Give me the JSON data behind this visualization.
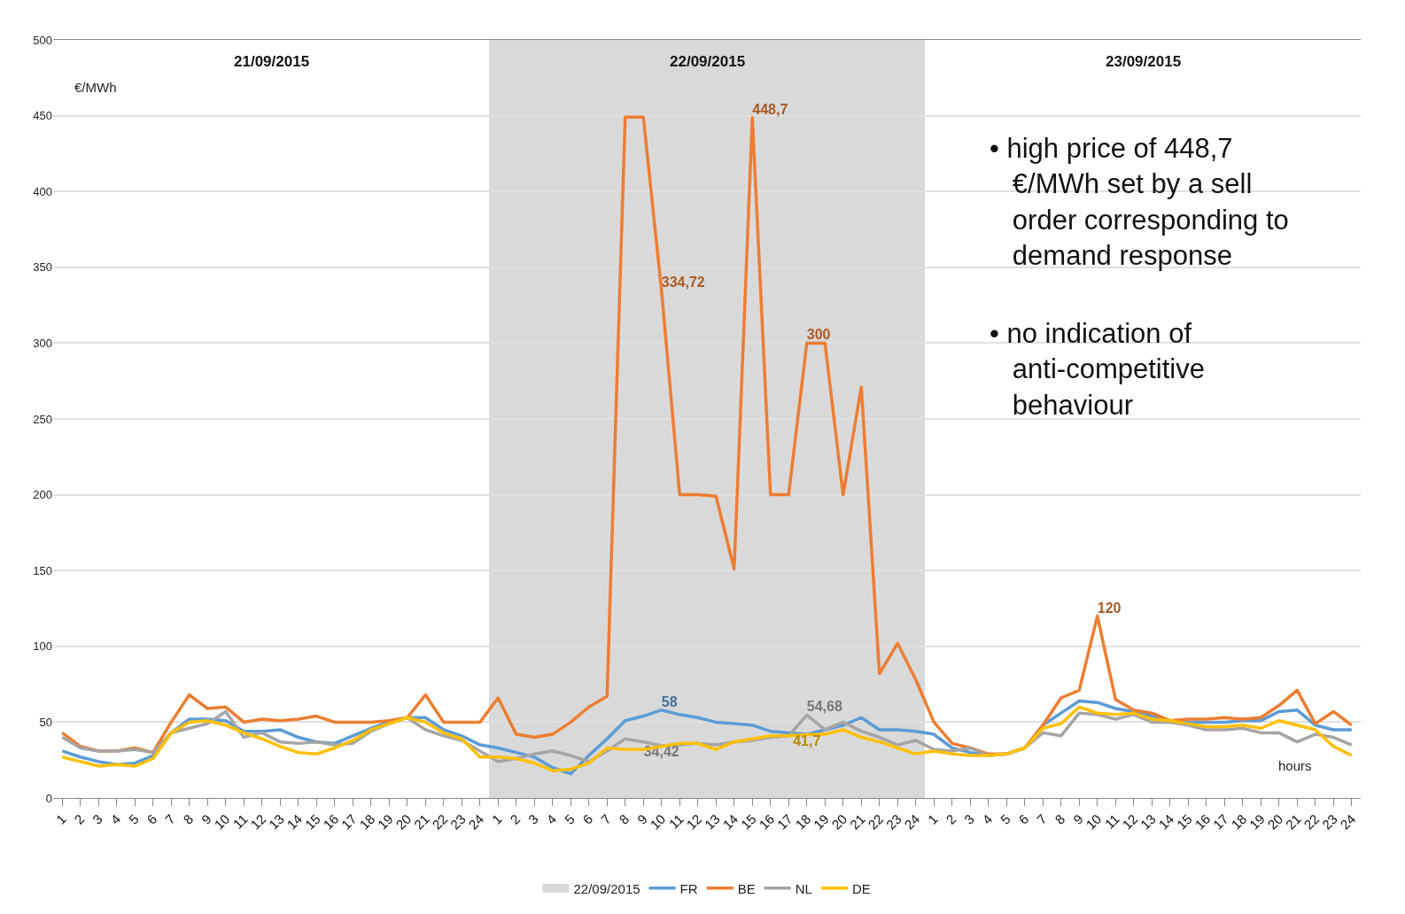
{
  "chart_data": {
    "type": "line",
    "ylabel": "€/MWh",
    "xlabel": "hours",
    "x": [
      "2015-09-21T01:00",
      "2015-09-21T02:00",
      "2015-09-21T03:00",
      "2015-09-21T04:00",
      "2015-09-21T05:00",
      "2015-09-21T06:00",
      "2015-09-21T07:00",
      "2015-09-21T08:00",
      "2015-09-21T09:00",
      "2015-09-21T10:00",
      "2015-09-21T11:00",
      "2015-09-21T12:00",
      "2015-09-21T13:00",
      "2015-09-21T14:00",
      "2015-09-21T15:00",
      "2015-09-21T16:00",
      "2015-09-21T17:00",
      "2015-09-21T18:00",
      "2015-09-21T19:00",
      "2015-09-21T20:00",
      "2015-09-21T21:00",
      "2015-09-21T22:00",
      "2015-09-21T23:00",
      "2015-09-22T00:00",
      "2015-09-22T01:00",
      "2015-09-22T02:00",
      "2015-09-22T03:00",
      "2015-09-22T04:00",
      "2015-09-22T05:00",
      "2015-09-22T06:00",
      "2015-09-22T07:00",
      "2015-09-22T08:00",
      "2015-09-22T09:00",
      "2015-09-22T10:00",
      "2015-09-22T11:00",
      "2015-09-22T12:00",
      "2015-09-22T13:00",
      "2015-09-22T14:00",
      "2015-09-22T15:00",
      "2015-09-22T16:00",
      "2015-09-22T17:00",
      "2015-09-22T18:00",
      "2015-09-22T19:00",
      "2015-09-22T20:00",
      "2015-09-22T21:00",
      "2015-09-22T22:00",
      "2015-09-22T23:00",
      "2015-09-23T00:00",
      "2015-09-23T01:00",
      "2015-09-23T02:00",
      "2015-09-23T03:00",
      "2015-09-23T04:00",
      "2015-09-23T05:00",
      "2015-09-23T06:00",
      "2015-09-23T07:00",
      "2015-09-23T08:00",
      "2015-09-23T09:00",
      "2015-09-23T10:00",
      "2015-09-23T11:00",
      "2015-09-23T12:00",
      "2015-09-23T13:00",
      "2015-09-23T14:00",
      "2015-09-23T15:00",
      "2015-09-23T16:00",
      "2015-09-23T17:00",
      "2015-09-23T18:00",
      "2015-09-23T19:00",
      "2015-09-23T20:00",
      "2015-09-23T21:00",
      "2015-09-23T22:00",
      "2015-09-23T23:00",
      "2015-09-24T00:00"
    ],
    "xlim": [
      "2015-09-21T00:30",
      "2015-09-24T00:30"
    ],
    "xticks": [
      {
        "value": "2015-09-21T01:00",
        "label": "1"
      },
      {
        "value": "2015-09-21T02:00",
        "label": "2"
      },
      {
        "value": "2015-09-21T03:00",
        "label": "3"
      },
      {
        "value": "2015-09-21T04:00",
        "label": "4"
      },
      {
        "value": "2015-09-21T05:00",
        "label": "5"
      },
      {
        "value": "2015-09-21T06:00",
        "label": "6"
      },
      {
        "value": "2015-09-21T07:00",
        "label": "7"
      },
      {
        "value": "2015-09-21T08:00",
        "label": "8"
      },
      {
        "value": "2015-09-21T09:00",
        "label": "9"
      },
      {
        "value": "2015-09-21T10:00",
        "label": "10"
      },
      {
        "value": "2015-09-21T11:00",
        "label": "11"
      },
      {
        "value": "2015-09-21T12:00",
        "label": "12"
      },
      {
        "value": "2015-09-21T13:00",
        "label": "13"
      },
      {
        "value": "2015-09-21T14:00",
        "label": "14"
      },
      {
        "value": "2015-09-21T15:00",
        "label": "15"
      },
      {
        "value": "2015-09-21T16:00",
        "label": "16"
      },
      {
        "value": "2015-09-21T17:00",
        "label": "17"
      },
      {
        "value": "2015-09-21T18:00",
        "label": "18"
      },
      {
        "value": "2015-09-21T19:00",
        "label": "19"
      },
      {
        "value": "2015-09-21T20:00",
        "label": "20"
      },
      {
        "value": "2015-09-21T21:00",
        "label": "21"
      },
      {
        "value": "2015-09-21T22:00",
        "label": "22"
      },
      {
        "value": "2015-09-21T23:00",
        "label": "23"
      },
      {
        "value": "2015-09-22T00:00",
        "label": "24"
      },
      {
        "value": "2015-09-22T01:00",
        "label": "1"
      },
      {
        "value": "2015-09-22T02:00",
        "label": "2"
      },
      {
        "value": "2015-09-22T03:00",
        "label": "3"
      },
      {
        "value": "2015-09-22T04:00",
        "label": "4"
      },
      {
        "value": "2015-09-22T05:00",
        "label": "5"
      },
      {
        "value": "2015-09-22T06:00",
        "label": "6"
      },
      {
        "value": "2015-09-22T07:00",
        "label": "7"
      },
      {
        "value": "2015-09-22T08:00",
        "label": "8"
      },
      {
        "value": "2015-09-22T09:00",
        "label": "9"
      },
      {
        "value": "2015-09-22T10:00",
        "label": "10"
      },
      {
        "value": "2015-09-22T11:00",
        "label": "11"
      },
      {
        "value": "2015-09-22T12:00",
        "label": "12"
      },
      {
        "value": "2015-09-22T13:00",
        "label": "13"
      },
      {
        "value": "2015-09-22T14:00",
        "label": "14"
      },
      {
        "value": "2015-09-22T15:00",
        "label": "15"
      },
      {
        "value": "2015-09-22T16:00",
        "label": "16"
      },
      {
        "value": "2015-09-22T17:00",
        "label": "17"
      },
      {
        "value": "2015-09-22T18:00",
        "label": "18"
      },
      {
        "value": "2015-09-22T19:00",
        "label": "19"
      },
      {
        "value": "2015-09-22T20:00",
        "label": "20"
      },
      {
        "value": "2015-09-22T21:00",
        "label": "21"
      },
      {
        "value": "2015-09-22T22:00",
        "label": "22"
      },
      {
        "value": "2015-09-22T23:00",
        "label": "23"
      },
      {
        "value": "2015-09-23T00:00",
        "label": "24"
      },
      {
        "value": "2015-09-23T01:00",
        "label": "1"
      },
      {
        "value": "2015-09-23T02:00",
        "label": "2"
      },
      {
        "value": "2015-09-23T03:00",
        "label": "3"
      },
      {
        "value": "2015-09-23T04:00",
        "label": "4"
      },
      {
        "value": "2015-09-23T05:00",
        "label": "5"
      },
      {
        "value": "2015-09-23T06:00",
        "label": "6"
      },
      {
        "value": "2015-09-23T07:00",
        "label": "7"
      },
      {
        "value": "2015-09-23T08:00",
        "label": "8"
      },
      {
        "value": "2015-09-23T09:00",
        "label": "9"
      },
      {
        "value": "2015-09-23T10:00",
        "label": "10"
      },
      {
        "value": "2015-09-23T11:00",
        "label": "11"
      },
      {
        "value": "2015-09-23T12:00",
        "label": "12"
      },
      {
        "value": "2015-09-23T13:00",
        "label": "13"
      },
      {
        "value": "2015-09-23T14:00",
        "label": "14"
      },
      {
        "value": "2015-09-23T15:00",
        "label": "15"
      },
      {
        "value": "2015-09-23T16:00",
        "label": "16"
      },
      {
        "value": "2015-09-23T17:00",
        "label": "17"
      },
      {
        "value": "2015-09-23T18:00",
        "label": "18"
      },
      {
        "value": "2015-09-23T19:00",
        "label": "19"
      },
      {
        "value": "2015-09-23T20:00",
        "label": "20"
      },
      {
        "value": "2015-09-23T21:00",
        "label": "21"
      },
      {
        "value": "2015-09-23T22:00",
        "label": "22"
      },
      {
        "value": "2015-09-23T23:00",
        "label": "23"
      },
      {
        "value": "2015-09-24T00:00",
        "label": "24"
      }
    ],
    "x2lim": [
      "2015-09-21T00:30",
      "2015-09-24T00:30"
    ],
    "x2ticks": [
      {
        "value": "2015-09-21T12:30",
        "label": "21/09/2015"
      },
      {
        "value": "2015-09-22T12:30",
        "label": "22/09/2015"
      },
      {
        "value": "2015-09-23T12:30",
        "label": "23/09/2015"
      }
    ],
    "ylim": [
      0,
      500
    ],
    "yticks": [
      0,
      50,
      100,
      150,
      200,
      250,
      300,
      350,
      400,
      450,
      500
    ],
    "grid": "y",
    "legend": "bottom",
    "line_style": "solid",
    "marker": "none",
    "series": [
      {
        "name": "FR",
        "color": "#5b9bd5",
        "values": [
          31,
          27,
          24,
          22,
          23,
          28,
          43,
          52,
          52,
          51,
          44,
          44,
          45,
          40,
          37,
          36,
          41,
          46,
          50,
          53,
          53,
          45,
          41,
          35,
          33,
          30,
          27,
          20,
          16,
          28,
          39,
          51,
          54,
          58,
          55,
          53,
          50,
          49,
          48,
          44,
          43,
          42,
          45,
          48,
          53,
          45,
          45,
          44,
          42,
          33,
          30,
          28,
          29,
          33,
          48,
          56,
          64,
          63,
          59,
          57,
          54,
          51,
          50,
          50,
          50,
          51,
          51,
          57,
          58,
          48,
          45,
          45
        ],
        "value_labels": [
          null,
          null,
          null,
          null,
          null,
          null,
          null,
          null,
          null,
          null,
          null,
          null,
          null,
          null,
          null,
          null,
          null,
          null,
          null,
          null,
          null,
          null,
          null,
          null,
          null,
          null,
          null,
          null,
          null,
          null,
          null,
          null,
          null,
          "58",
          null,
          null,
          null,
          null,
          null,
          null,
          null,
          null,
          null,
          null,
          null,
          null,
          null,
          null,
          null,
          null,
          null,
          null,
          null,
          null,
          null,
          null,
          null,
          null,
          null,
          null,
          null,
          null,
          null,
          null,
          null,
          null,
          null,
          null,
          null,
          null,
          null,
          null
        ]
      },
      {
        "name": "BE",
        "color": "#ed7d31",
        "values": [
          43,
          34,
          31,
          31,
          33,
          30,
          50,
          68,
          59,
          60,
          50,
          52,
          51,
          52,
          54,
          50,
          50,
          50,
          51,
          53,
          68,
          50,
          50,
          50,
          66,
          42,
          40,
          42,
          50,
          60,
          67,
          449,
          449,
          334.72,
          200,
          200,
          199,
          151,
          448.7,
          200,
          200,
          300,
          300,
          200,
          271,
          82,
          102,
          78,
          50,
          36,
          33,
          29,
          29,
          33,
          48,
          66,
          71,
          120,
          65,
          58,
          56,
          51,
          52,
          52,
          53,
          52,
          53,
          61,
          71,
          49,
          57,
          48
        ],
        "value_labels": [
          null,
          null,
          null,
          null,
          null,
          null,
          null,
          null,
          null,
          null,
          null,
          null,
          null,
          null,
          null,
          null,
          null,
          null,
          null,
          null,
          null,
          null,
          null,
          null,
          null,
          null,
          null,
          null,
          null,
          null,
          null,
          null,
          null,
          "334,72",
          null,
          null,
          null,
          null,
          "448,7",
          null,
          null,
          "300",
          null,
          null,
          null,
          null,
          null,
          null,
          null,
          null,
          null,
          null,
          null,
          null,
          null,
          null,
          null,
          "120",
          null,
          null,
          null,
          null,
          null,
          null,
          null,
          null,
          null,
          null,
          null,
          null,
          null,
          null
        ]
      },
      {
        "name": "NL",
        "color": "#a5a5a5",
        "values": [
          40,
          33,
          31,
          31,
          32,
          30,
          43,
          46,
          49,
          57,
          40,
          43,
          37,
          36,
          37,
          35,
          36,
          44,
          49,
          53,
          45,
          41,
          38,
          31,
          24,
          26,
          29,
          31,
          28,
          24,
          31,
          39,
          37,
          34.42,
          35,
          36,
          35,
          37,
          38,
          40,
          41,
          54.68,
          45,
          50,
          44,
          40,
          35,
          38,
          32,
          31,
          33,
          28,
          29,
          33,
          43,
          41,
          56,
          55,
          52,
          55,
          50,
          50,
          48,
          45,
          45,
          46,
          43,
          43,
          37,
          42,
          40,
          35
        ],
        "value_labels": [
          null,
          null,
          null,
          null,
          null,
          null,
          null,
          null,
          null,
          null,
          null,
          null,
          null,
          null,
          null,
          null,
          null,
          null,
          null,
          null,
          null,
          null,
          null,
          null,
          null,
          null,
          null,
          null,
          null,
          null,
          null,
          null,
          null,
          "34,42",
          null,
          null,
          null,
          null,
          null,
          null,
          null,
          "54,68",
          null,
          null,
          null,
          null,
          null,
          null,
          null,
          null,
          null,
          null,
          null,
          null,
          null,
          null,
          null,
          null,
          null,
          null,
          null,
          null,
          null,
          null,
          null,
          null,
          null,
          null,
          null,
          null,
          null,
          null
        ]
      },
      {
        "name": "DE",
        "color": "#ffc000",
        "values": [
          27,
          24,
          21,
          22,
          21,
          26,
          43,
          50,
          51,
          48,
          43,
          39,
          34,
          30,
          29,
          33,
          38,
          45,
          49,
          53,
          50,
          43,
          39,
          27,
          27,
          26,
          23,
          18,
          19,
          23,
          33,
          32,
          32,
          34,
          36,
          36,
          32,
          37,
          39,
          41,
          41,
          41.7,
          42,
          45,
          40,
          37,
          33,
          29,
          31,
          29,
          28,
          28,
          29,
          33,
          46,
          49,
          60,
          56,
          55,
          56,
          52,
          51,
          49,
          47,
          47,
          48,
          46,
          51,
          48,
          45,
          34,
          28
        ],
        "value_labels": [
          null,
          null,
          null,
          null,
          null,
          null,
          null,
          null,
          null,
          null,
          null,
          null,
          null,
          null,
          null,
          null,
          null,
          null,
          null,
          null,
          null,
          null,
          null,
          null,
          null,
          null,
          null,
          null,
          null,
          null,
          null,
          null,
          null,
          null,
          null,
          null,
          null,
          null,
          null,
          null,
          null,
          "41,7",
          null,
          null,
          null,
          null,
          null,
          null,
          null,
          null,
          null,
          null,
          null,
          null,
          null,
          null,
          null,
          null,
          null,
          null,
          null,
          null,
          null,
          null,
          null,
          null,
          null,
          null,
          null,
          null,
          null,
          null
        ]
      }
    ],
    "bands": [
      {
        "axis": "x",
        "from": "2015-09-22T00:30",
        "to": "2015-09-23T00:30",
        "label": "22/09/2015",
        "color": "#d9d9d9"
      }
    ],
    "annotations": [
      "• high price of 448,7 €/MWh set by a sell order corresponding to demand response",
      "• no indication of anti-competitive behaviour"
    ]
  }
}
